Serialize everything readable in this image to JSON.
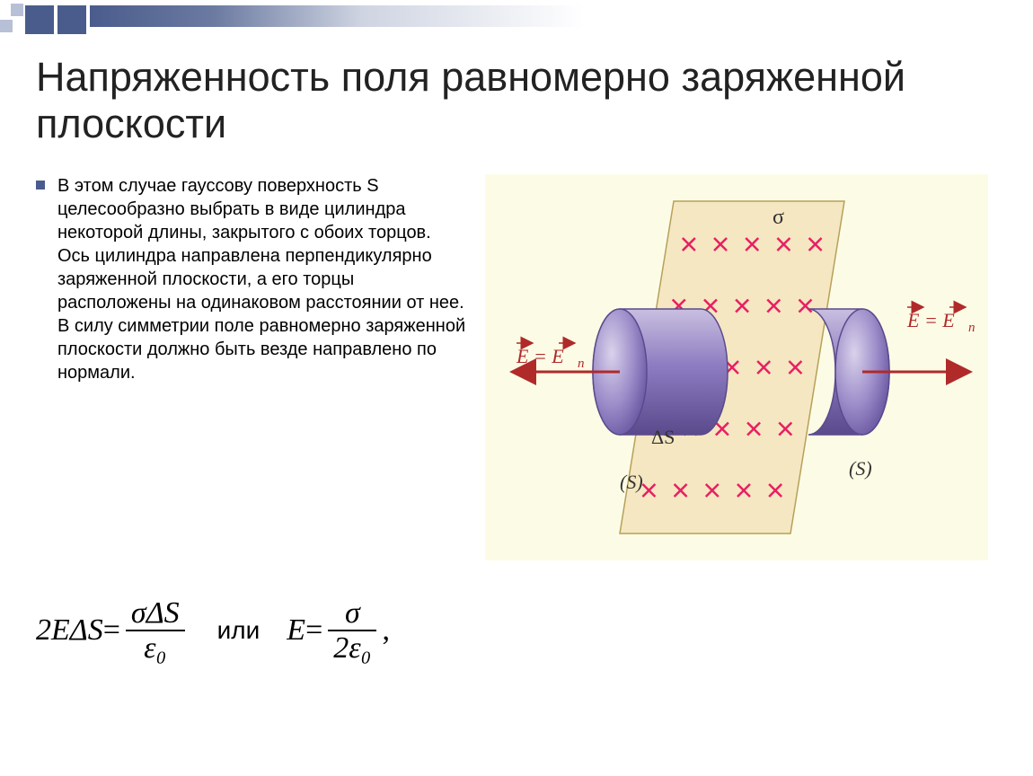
{
  "header_deco": {
    "small_sq_color": "#b8c0d7",
    "big_sq_color": "#4a5c8c",
    "gradient_from": "#4a5c8c",
    "gradient_to": "#ffffff"
  },
  "title": "Напряженность поля равномерно заряженной плоскости",
  "bullet_text": "В этом случае гауссову поверхность S целесообразно выбрать в виде цилиндра некоторой длины, закрытого с обоих торцов. Ось цилиндра направлена перпендикулярно заряженной плоскости, а его торцы расположены на одинаковом расстоянии от нее. В силу симметрии поле равномерно заряженной плоскости должно быть везде направлено по нормали.",
  "diagram": {
    "background": "#fcfce6",
    "plane_fill": "#f5e7c1",
    "plane_stroke": "#b7a05a",
    "cross_color": "#e91e63",
    "cross_grid": {
      "rows": 5,
      "cols": 5
    },
    "sigma_label": "σ",
    "cylinder": {
      "fill_light": "#a99ccf",
      "fill_mid": "#8d7cc1",
      "fill_dark": "#6e5ba5",
      "stroke": "#5a4a8c"
    },
    "arrow_color": "#b02a2a",
    "left_field_label": "E = Eₙ",
    "right_field_label": "E = Eₙ",
    "delta_s_label": "ΔS",
    "surface_label_left": "(S)",
    "surface_label_right": "(S)"
  },
  "formula": {
    "lhs": "2EΔS",
    "eq1": " = ",
    "num1": "σΔS",
    "den1": "ε₀",
    "or_text": "или",
    "lhs2": "E",
    "eq2": " = ",
    "num2": "σ",
    "den2": "2ε₀",
    "comma": ","
  }
}
